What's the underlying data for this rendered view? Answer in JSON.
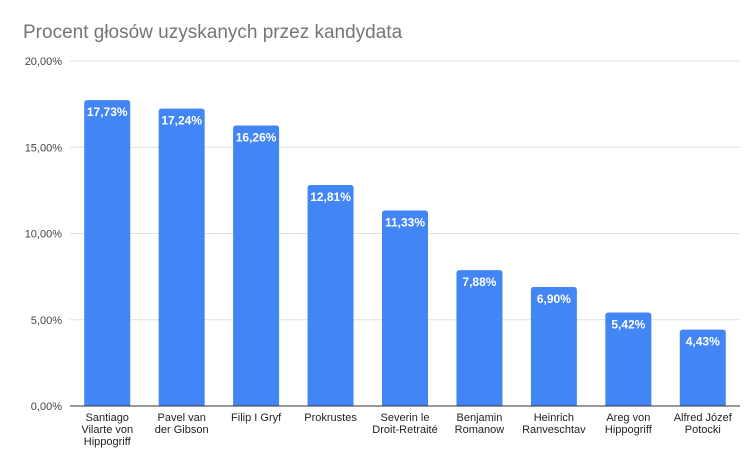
{
  "chart_data": {
    "type": "bar",
    "title": "Procent głosów uzyskanych przez kandydata",
    "xlabel": "",
    "ylabel": "",
    "ylim": [
      0,
      20
    ],
    "yticks": [
      0,
      5,
      10,
      15,
      20
    ],
    "ytick_labels": [
      "0,00%",
      "5,00%",
      "10,00%",
      "15,00%",
      "20,00%"
    ],
    "grid": true,
    "bar_color": "#4285f4",
    "categories": [
      [
        "Santiago",
        "Vilarte von",
        "Hippogriff"
      ],
      [
        "Pavel van",
        "der Gibson"
      ],
      [
        "Filip I Gryf"
      ],
      [
        "Prokrustes"
      ],
      [
        "Severin le",
        "Droit-Retraité"
      ],
      [
        "Benjamin",
        "Romanow"
      ],
      [
        "Heinrich",
        "Ranveschtav"
      ],
      [
        "Areg von",
        "Hippogriff"
      ],
      [
        "Alfred Józef",
        "Potocki"
      ]
    ],
    "values": [
      17.73,
      17.24,
      16.26,
      12.81,
      11.33,
      7.88,
      6.9,
      5.42,
      4.43
    ],
    "data_labels": [
      "17,73%",
      "17,24%",
      "16,26%",
      "12,81%",
      "11,33%",
      "7,88%",
      "6,90%",
      "5,42%",
      "4,43%"
    ]
  }
}
